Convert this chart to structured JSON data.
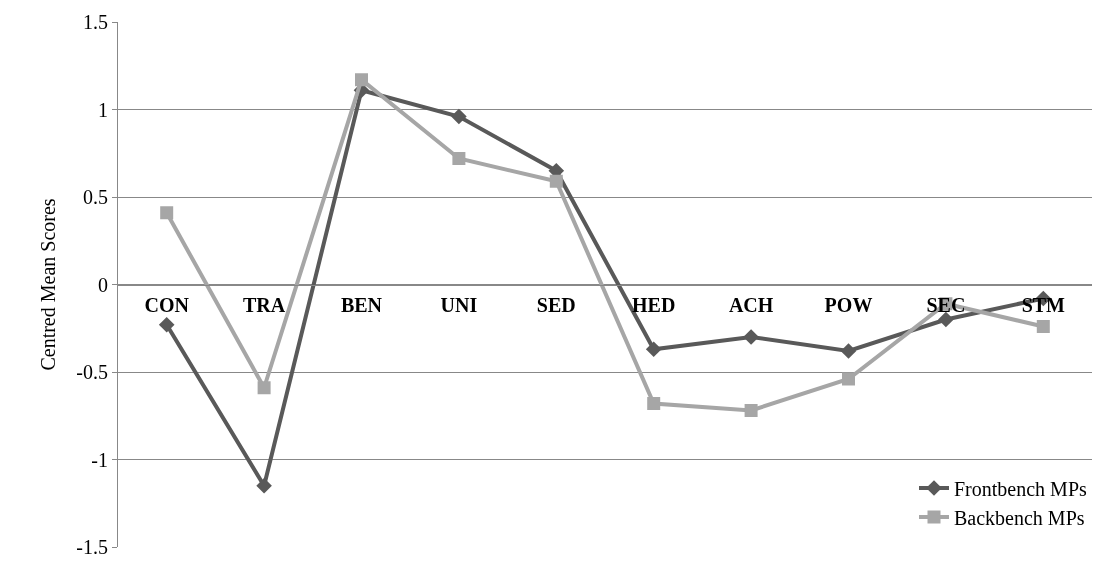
{
  "chart_data": {
    "type": "line",
    "ylabel": "Centred Mean Scores",
    "categories": [
      "CON",
      "TRA",
      "BEN",
      "UNI",
      "SED",
      "HED",
      "ACH",
      "POW",
      "SEC",
      "STM"
    ],
    "series": [
      {
        "name": "Frontbench MPs",
        "color": "#595959",
        "marker": "diamond",
        "values": [
          -0.23,
          -1.15,
          1.11,
          0.96,
          0.65,
          -0.37,
          -0.3,
          -0.38,
          -0.2,
          -0.08
        ]
      },
      {
        "name": "Backbench MPs",
        "color": "#a6a6a6",
        "marker": "square",
        "values": [
          0.41,
          -0.59,
          1.17,
          0.72,
          0.59,
          -0.68,
          -0.72,
          -0.54,
          -0.11,
          -0.24
        ]
      }
    ],
    "ylim": [
      -1.5,
      1.5
    ],
    "yticks": [
      -1.5,
      -1,
      -0.5,
      0,
      0.5,
      1,
      1.5
    ],
    "grid": "y",
    "legend": "bottom right",
    "line_style": "solid"
  }
}
